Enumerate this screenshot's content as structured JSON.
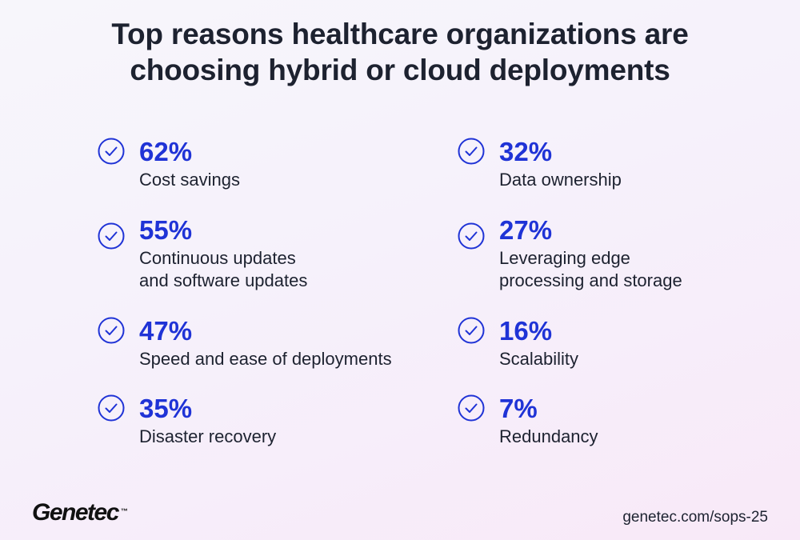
{
  "title": {
    "line1": "Top reasons healthcare organizations are",
    "line2": "choosing hybrid or cloud deployments"
  },
  "reasons": [
    {
      "pct": "62%",
      "lines": [
        "Cost savings"
      ]
    },
    {
      "pct": "55%",
      "lines": [
        "Continuous updates",
        "and software updates"
      ]
    },
    {
      "pct": "47%",
      "lines": [
        "Speed and ease of deployments"
      ]
    },
    {
      "pct": "35%",
      "lines": [
        "Disaster recovery"
      ]
    },
    {
      "pct": "32%",
      "lines": [
        "Data ownership"
      ]
    },
    {
      "pct": "27%",
      "lines": [
        "Leveraging edge",
        "processing and storage"
      ]
    },
    {
      "pct": "16%",
      "lines": [
        "Scalability"
      ]
    },
    {
      "pct": "7%",
      "lines": [
        "Redundancy"
      ]
    }
  ],
  "icons": {
    "check": "check-circle-icon"
  },
  "colors": {
    "accent": "#1f33d6",
    "text": "#1d2230"
  },
  "footer": {
    "logo": "Genetec",
    "trademark": "™",
    "url": "genetec.com/sops-25"
  }
}
